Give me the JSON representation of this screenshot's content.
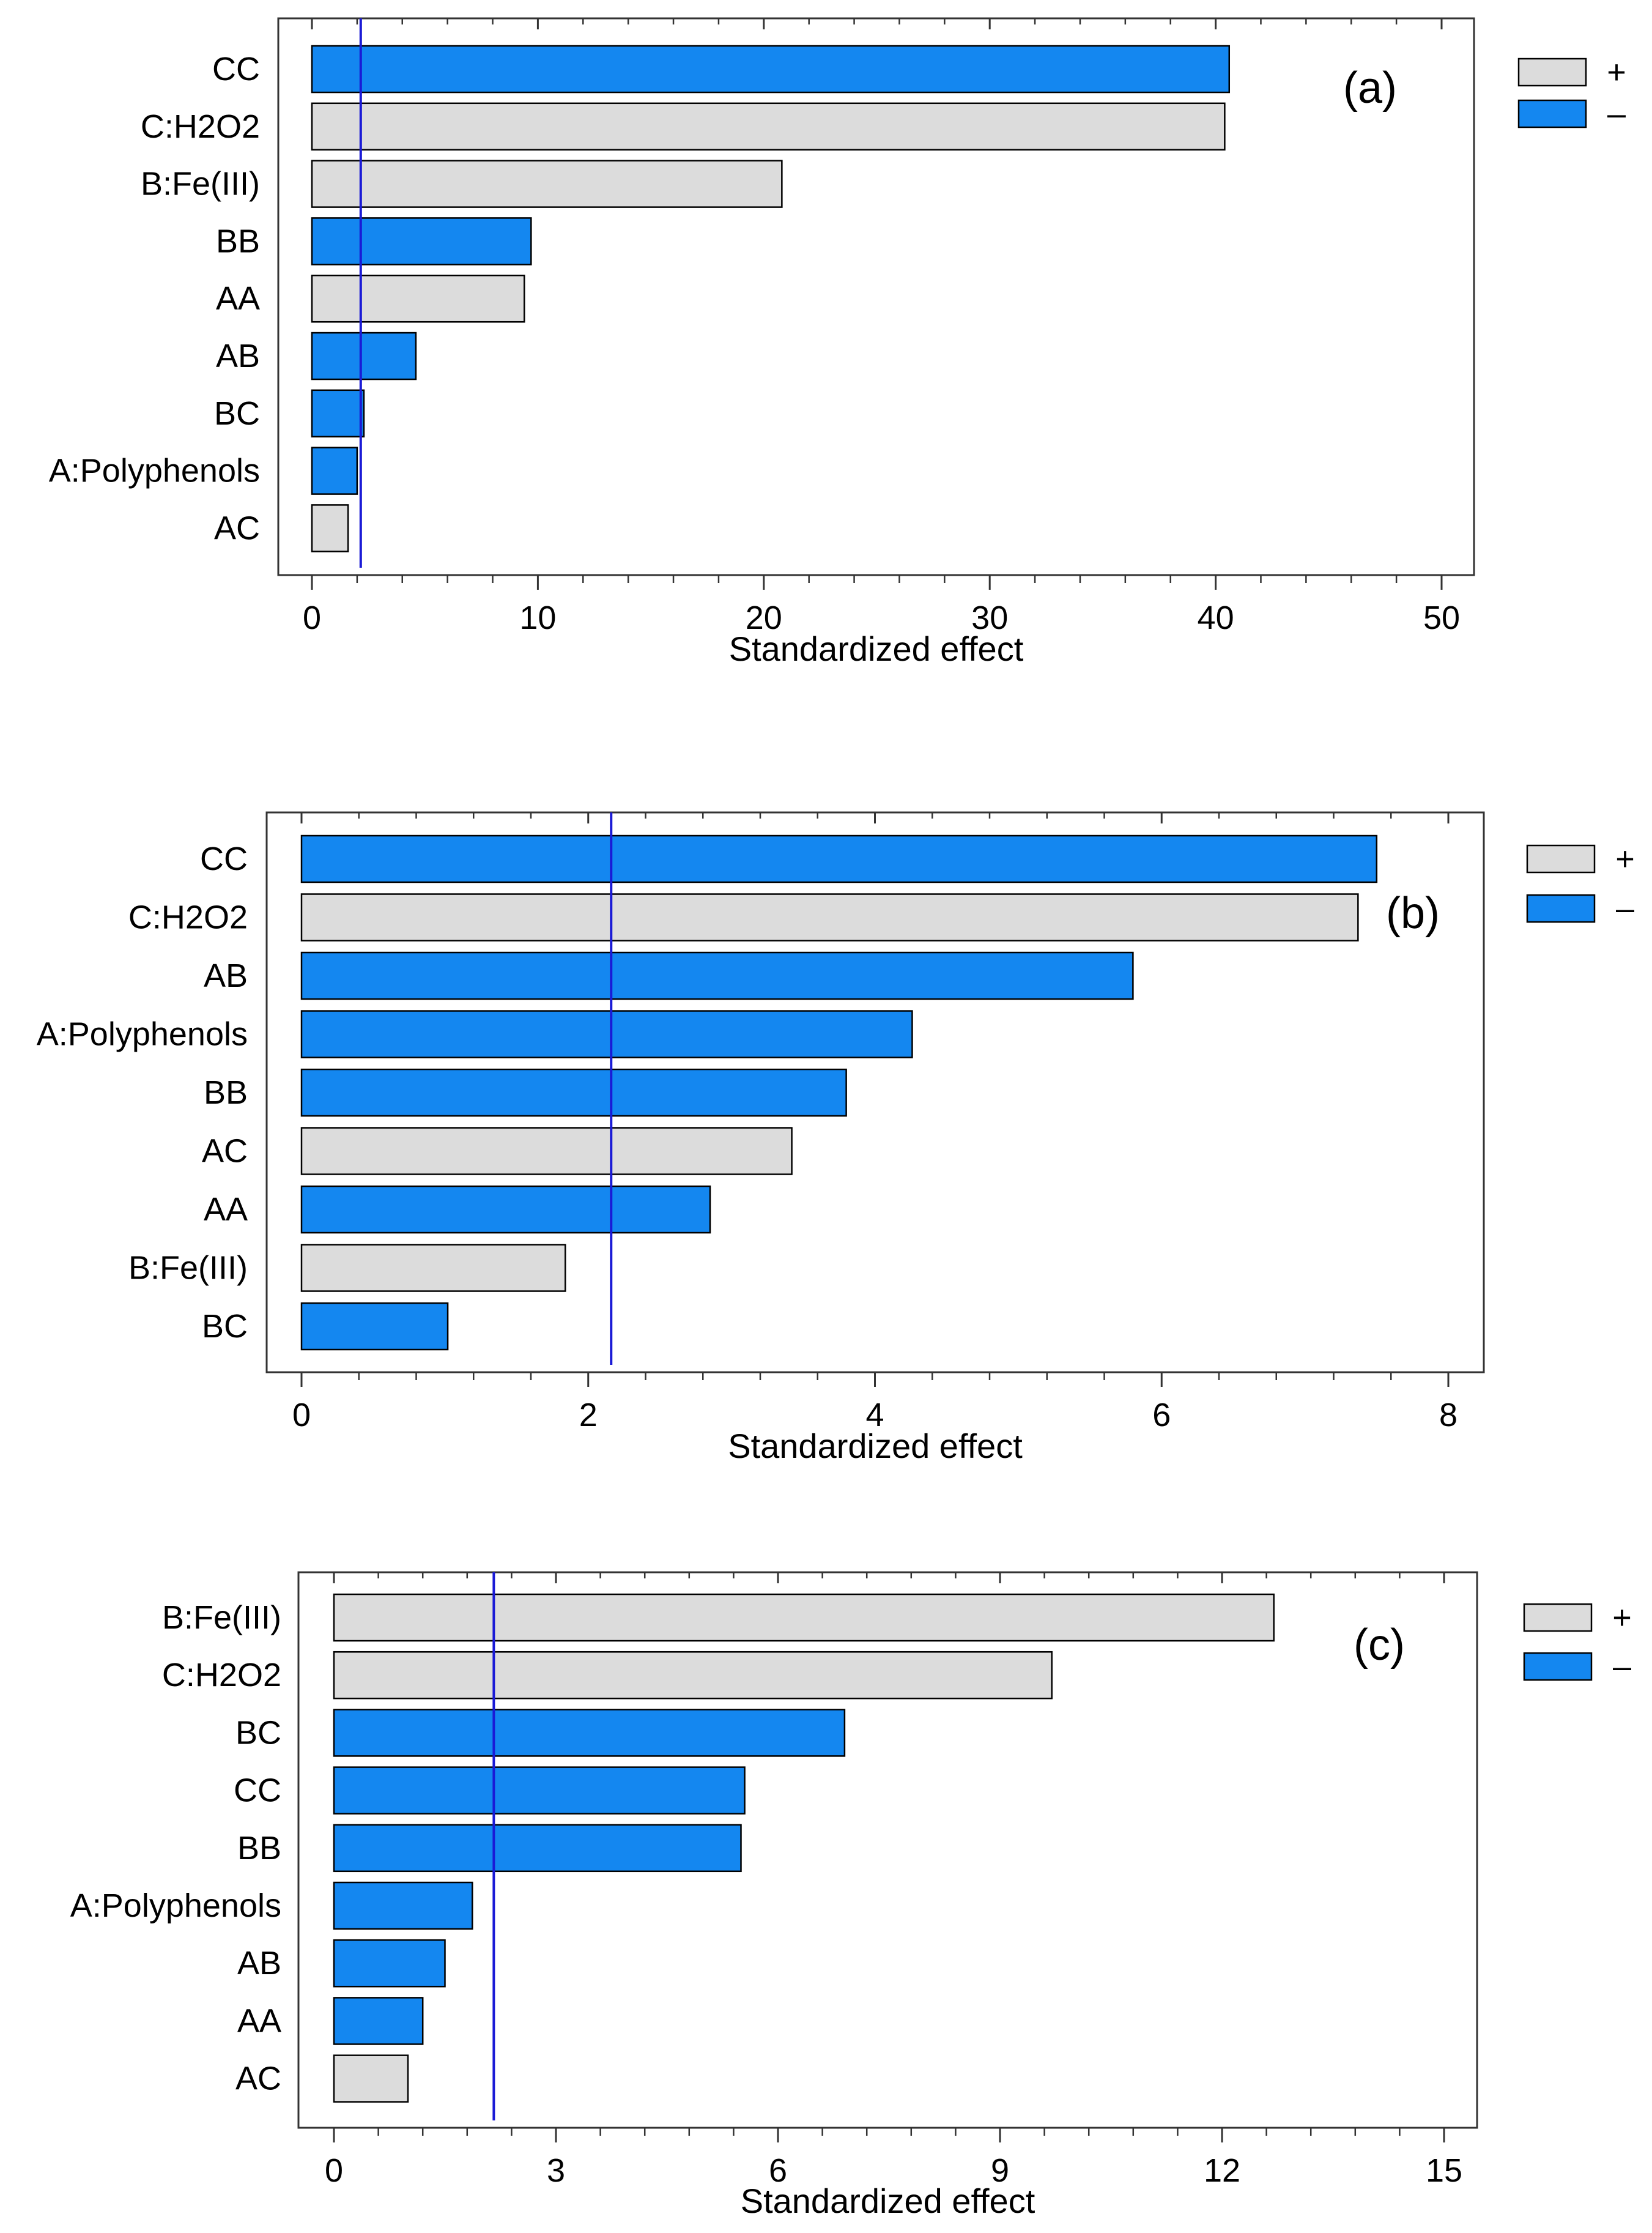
{
  "colors": {
    "positive": "#dcdcdc",
    "negative": "#1487f0",
    "reference_line": "#1a1ad6",
    "bar_stroke": "#000000",
    "frame": "#333333"
  },
  "chart_data": [
    {
      "type": "bar",
      "orientation": "horizontal",
      "panel_label": "(a)",
      "xlabel": "Standardized effect",
      "xlim": [
        0,
        50
      ],
      "xticks": [
        0,
        10,
        20,
        30,
        40,
        50
      ],
      "reference_line": 2.16,
      "legend": {
        "position": "right",
        "entries": [
          {
            "label": "+",
            "sign": "positive"
          },
          {
            "label": "–",
            "sign": "negative"
          }
        ]
      },
      "bars": [
        {
          "label": "CC",
          "value": 40.6,
          "sign": "negative"
        },
        {
          "label": "C:H2O2",
          "value": 40.4,
          "sign": "positive"
        },
        {
          "label": "B:Fe(III)",
          "value": 20.8,
          "sign": "positive"
        },
        {
          "label": "BB",
          "value": 9.7,
          "sign": "negative"
        },
        {
          "label": "AA",
          "value": 9.4,
          "sign": "positive"
        },
        {
          "label": "AB",
          "value": 4.6,
          "sign": "negative"
        },
        {
          "label": "BC",
          "value": 2.3,
          "sign": "negative"
        },
        {
          "label": "A:Polyphenols",
          "value": 2.0,
          "sign": "negative"
        },
        {
          "label": "AC",
          "value": 1.6,
          "sign": "positive"
        }
      ]
    },
    {
      "type": "bar",
      "orientation": "horizontal",
      "panel_label": "(b)",
      "xlabel": "Standardized effect",
      "xlim": [
        0,
        8
      ],
      "xticks": [
        0,
        2,
        4,
        6,
        8
      ],
      "reference_line": 2.16,
      "legend": {
        "position": "right",
        "entries": [
          {
            "label": "+",
            "sign": "positive"
          },
          {
            "label": "–",
            "sign": "negative"
          }
        ]
      },
      "bars": [
        {
          "label": "CC",
          "value": 7.5,
          "sign": "negative"
        },
        {
          "label": "C:H2O2",
          "value": 7.37,
          "sign": "positive"
        },
        {
          "label": "AB",
          "value": 5.8,
          "sign": "negative"
        },
        {
          "label": "A:Polyphenols",
          "value": 4.26,
          "sign": "negative"
        },
        {
          "label": "BB",
          "value": 3.8,
          "sign": "negative"
        },
        {
          "label": "AC",
          "value": 3.42,
          "sign": "positive"
        },
        {
          "label": "AA",
          "value": 2.85,
          "sign": "negative"
        },
        {
          "label": "B:Fe(III)",
          "value": 1.84,
          "sign": "positive"
        },
        {
          "label": "BC",
          "value": 1.02,
          "sign": "negative"
        }
      ]
    },
    {
      "type": "bar",
      "orientation": "horizontal",
      "panel_label": "(c)",
      "xlabel": "Standardized effect",
      "xlim": [
        0,
        15
      ],
      "xticks": [
        0,
        3,
        6,
        9,
        12,
        15
      ],
      "reference_line": 2.16,
      "legend": {
        "position": "right",
        "entries": [
          {
            "label": "+",
            "sign": "positive"
          },
          {
            "label": "–",
            "sign": "negative"
          }
        ]
      },
      "bars": [
        {
          "label": "B:Fe(III)",
          "value": 12.7,
          "sign": "positive"
        },
        {
          "label": "C:H2O2",
          "value": 9.7,
          "sign": "positive"
        },
        {
          "label": "BC",
          "value": 6.9,
          "sign": "negative"
        },
        {
          "label": "CC",
          "value": 5.55,
          "sign": "negative"
        },
        {
          "label": "BB",
          "value": 5.5,
          "sign": "negative"
        },
        {
          "label": "A:Polyphenols",
          "value": 1.87,
          "sign": "negative"
        },
        {
          "label": "AB",
          "value": 1.5,
          "sign": "negative"
        },
        {
          "label": "AA",
          "value": 1.2,
          "sign": "negative"
        },
        {
          "label": "AC",
          "value": 1.0,
          "sign": "positive"
        }
      ]
    }
  ]
}
